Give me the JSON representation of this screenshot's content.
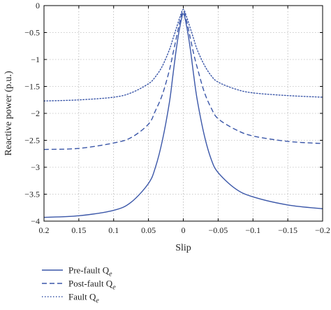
{
  "chart_data": {
    "type": "line",
    "title": "",
    "xlabel": "Slip",
    "ylabel": "Reactive power (p.u.)",
    "xlim": [
      0.2,
      -0.2
    ],
    "ylim": [
      -4,
      0
    ],
    "x_reversed": true,
    "xticks": [
      0.2,
      0.15,
      0.1,
      0.05,
      0,
      -0.05,
      -0.1,
      -0.15,
      -0.2
    ],
    "xtick_labels": [
      "0.2",
      "0.15",
      "0.1",
      "0.05",
      "0",
      "−0.05",
      "−0.1",
      "−0.15",
      "−0.2"
    ],
    "yticks": [
      0,
      -0.5,
      -1,
      -1.5,
      -2,
      -2.5,
      -3,
      -3.5,
      -4
    ],
    "ytick_labels": [
      "0",
      "−0.5",
      "−1",
      "−1.5",
      "−2",
      "−2.5",
      "−3",
      "−3.5",
      "−4"
    ],
    "grid": true,
    "legend_position": "bottom-left-outside",
    "color": "#3a56a8",
    "series": [
      {
        "name": "Pre-fault Q",
        "name_subscript": "e",
        "style": "solid",
        "x": [
          0.2,
          0.15,
          0.1,
          0.075,
          0.05,
          0.04,
          0.03,
          0.02,
          0.015,
          0.01,
          0.005,
          0,
          -0.005,
          -0.01,
          -0.015,
          -0.02,
          -0.03,
          -0.04,
          -0.05,
          -0.075,
          -0.1,
          -0.15,
          -0.2
        ],
        "y": [
          -3.93,
          -3.9,
          -3.8,
          -3.65,
          -3.3,
          -3.0,
          -2.5,
          -1.8,
          -1.3,
          -0.8,
          -0.4,
          -0.15,
          -0.4,
          -0.8,
          -1.3,
          -1.75,
          -2.4,
          -2.85,
          -3.1,
          -3.4,
          -3.55,
          -3.7,
          -3.77
        ]
      },
      {
        "name": "Post-fault Q",
        "name_subscript": "e",
        "style": "dashed",
        "x": [
          0.2,
          0.15,
          0.1,
          0.075,
          0.05,
          0.04,
          0.03,
          0.02,
          0.015,
          0.01,
          0.005,
          0,
          -0.005,
          -0.01,
          -0.015,
          -0.02,
          -0.03,
          -0.04,
          -0.05,
          -0.075,
          -0.1,
          -0.15,
          -0.2
        ],
        "y": [
          -2.67,
          -2.65,
          -2.55,
          -2.45,
          -2.2,
          -1.95,
          -1.65,
          -1.2,
          -0.9,
          -0.6,
          -0.3,
          -0.1,
          -0.3,
          -0.6,
          -0.9,
          -1.15,
          -1.6,
          -1.9,
          -2.1,
          -2.3,
          -2.42,
          -2.52,
          -2.56
        ]
      },
      {
        "name": "Fault Q",
        "name_subscript": "e",
        "style": "dotted",
        "x": [
          0.2,
          0.15,
          0.1,
          0.075,
          0.05,
          0.04,
          0.03,
          0.02,
          0.015,
          0.01,
          0.005,
          0,
          -0.005,
          -0.01,
          -0.015,
          -0.02,
          -0.03,
          -0.04,
          -0.05,
          -0.075,
          -0.1,
          -0.15,
          -0.2
        ],
        "y": [
          -1.77,
          -1.75,
          -1.7,
          -1.62,
          -1.45,
          -1.32,
          -1.12,
          -0.82,
          -0.62,
          -0.42,
          -0.22,
          -0.07,
          -0.22,
          -0.42,
          -0.62,
          -0.82,
          -1.1,
          -1.3,
          -1.42,
          -1.55,
          -1.62,
          -1.67,
          -1.7
        ]
      }
    ]
  }
}
